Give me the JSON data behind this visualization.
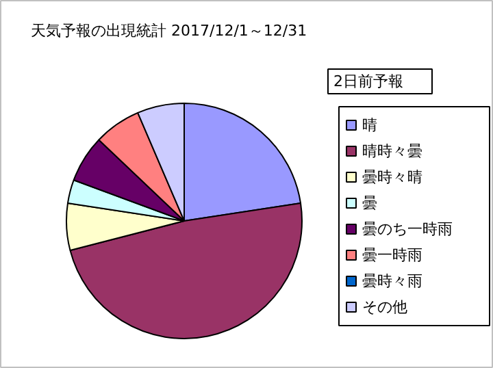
{
  "chart_data": {
    "type": "pie",
    "title": "天気予報の出現統計 2017/12/1～12/31",
    "annotations": [
      "2日前予報"
    ],
    "categories": [
      "晴",
      "晴時々曇",
      "曇時々晴",
      "曇",
      "曇のち一時雨",
      "曇一時雨",
      "曇時々雨",
      "その他"
    ],
    "values": [
      22.58,
      48.39,
      6.45,
      3.23,
      6.45,
      6.45,
      0,
      6.45
    ],
    "colors": [
      "#9999ff",
      "#993366",
      "#ffffcc",
      "#ccffff",
      "#660066",
      "#ff8080",
      "#0066cc",
      "#ccccff"
    ],
    "legend": "right"
  }
}
